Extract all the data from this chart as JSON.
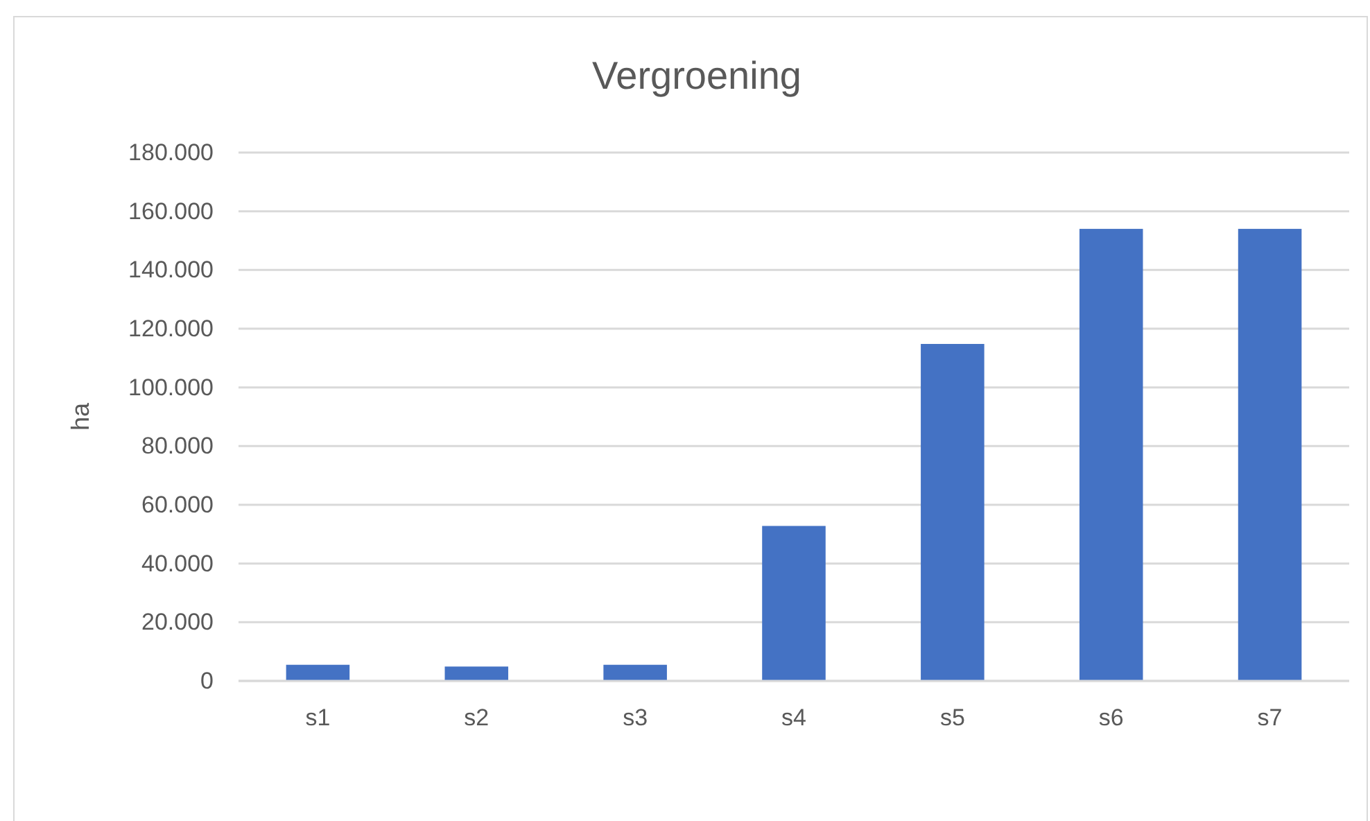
{
  "chart_data": {
    "type": "bar",
    "title": "Vergroening",
    "ylabel": "ha",
    "categories": [
      "s1",
      "s2",
      "s3",
      "s4",
      "s5",
      "s6",
      "s7"
    ],
    "values": [
      5500,
      4900,
      5500,
      52800,
      114800,
      154000,
      154000
    ],
    "color": "#4472c4",
    "ylim": [
      0,
      180000
    ],
    "yticks": [
      {
        "value": 0,
        "label": "0"
      },
      {
        "value": 20000,
        "label": "20.000"
      },
      {
        "value": 40000,
        "label": "40.000"
      },
      {
        "value": 60000,
        "label": "60.000"
      },
      {
        "value": 80000,
        "label": "80.000"
      },
      {
        "value": 100000,
        "label": "100.000"
      },
      {
        "value": 120000,
        "label": "120.000"
      },
      {
        "value": 140000,
        "label": "140.000"
      },
      {
        "value": 160000,
        "label": "160.000"
      },
      {
        "value": 180000,
        "label": "180.000"
      }
    ],
    "grid": "y"
  }
}
